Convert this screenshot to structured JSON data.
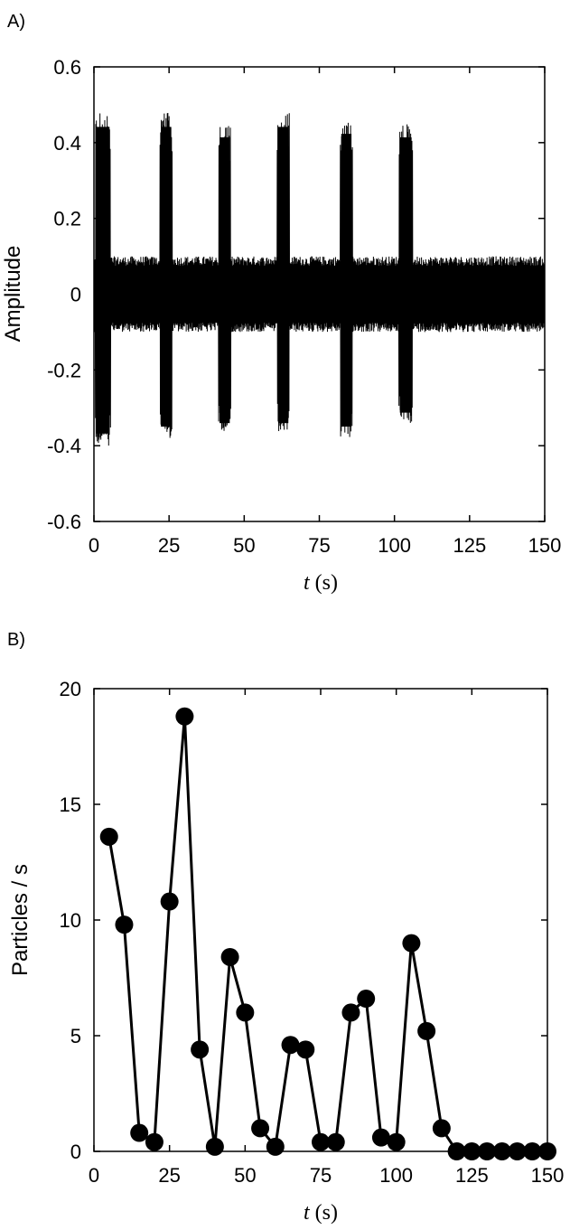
{
  "chart_data": [
    {
      "type": "line",
      "panel_label": "A)",
      "title": "",
      "xlabel_italic": "t",
      "xlabel_unit": " (s)",
      "ylabel": "Amplitude",
      "xlim": [
        0,
        150
      ],
      "ylim": [
        -0.6,
        0.6
      ],
      "xticks": [
        0,
        25,
        50,
        75,
        100,
        125,
        150
      ],
      "yticks": [
        -0.6,
        -0.4,
        -0.2,
        0,
        0.2,
        0.4,
        0.6
      ],
      "ytick_labels": [
        "-0.6",
        "-0.4",
        "-0.2",
        "0",
        "0.2",
        "0.4",
        "0.6"
      ],
      "grid": false,
      "color": "#000000",
      "baseline_noise": 0.1,
      "bursts": [
        {
          "start": 0.5,
          "end": 5.5,
          "max": 0.48,
          "min": -0.4
        },
        {
          "start": 22,
          "end": 26,
          "max": 0.48,
          "min": -0.38
        },
        {
          "start": 41.5,
          "end": 45.5,
          "max": 0.45,
          "min": -0.37
        },
        {
          "start": 61,
          "end": 65,
          "max": 0.48,
          "min": -0.37
        },
        {
          "start": 82,
          "end": 86,
          "max": 0.46,
          "min": -0.38
        },
        {
          "start": 101.5,
          "end": 106,
          "max": 0.45,
          "min": -0.34
        }
      ]
    },
    {
      "type": "line",
      "panel_label": "B)",
      "title": "",
      "xlabel_italic": "t",
      "xlabel_unit": " (s)",
      "ylabel": "Particles / s",
      "xlim": [
        0,
        150
      ],
      "ylim": [
        0,
        20
      ],
      "xticks": [
        0,
        25,
        50,
        75,
        100,
        125,
        150
      ],
      "yticks": [
        0,
        5,
        10,
        15,
        20
      ],
      "ytick_labels": [
        "0",
        "5",
        "10",
        "15",
        "20"
      ],
      "grid": false,
      "color": "#000000",
      "x": [
        5,
        10,
        15,
        20,
        25,
        30,
        35,
        40,
        45,
        50,
        55,
        60,
        65,
        70,
        75,
        80,
        85,
        90,
        95,
        100,
        105,
        110,
        115,
        120,
        125,
        130,
        135,
        140,
        145,
        150
      ],
      "y": [
        13.6,
        9.8,
        0.8,
        0.4,
        10.8,
        18.8,
        4.4,
        0.2,
        8.4,
        6.0,
        1.0,
        0.2,
        4.6,
        4.4,
        0.4,
        0.4,
        6.0,
        6.6,
        0.6,
        0.4,
        9.0,
        5.2,
        1.0,
        0,
        0,
        0,
        0,
        0,
        0,
        0
      ]
    }
  ]
}
